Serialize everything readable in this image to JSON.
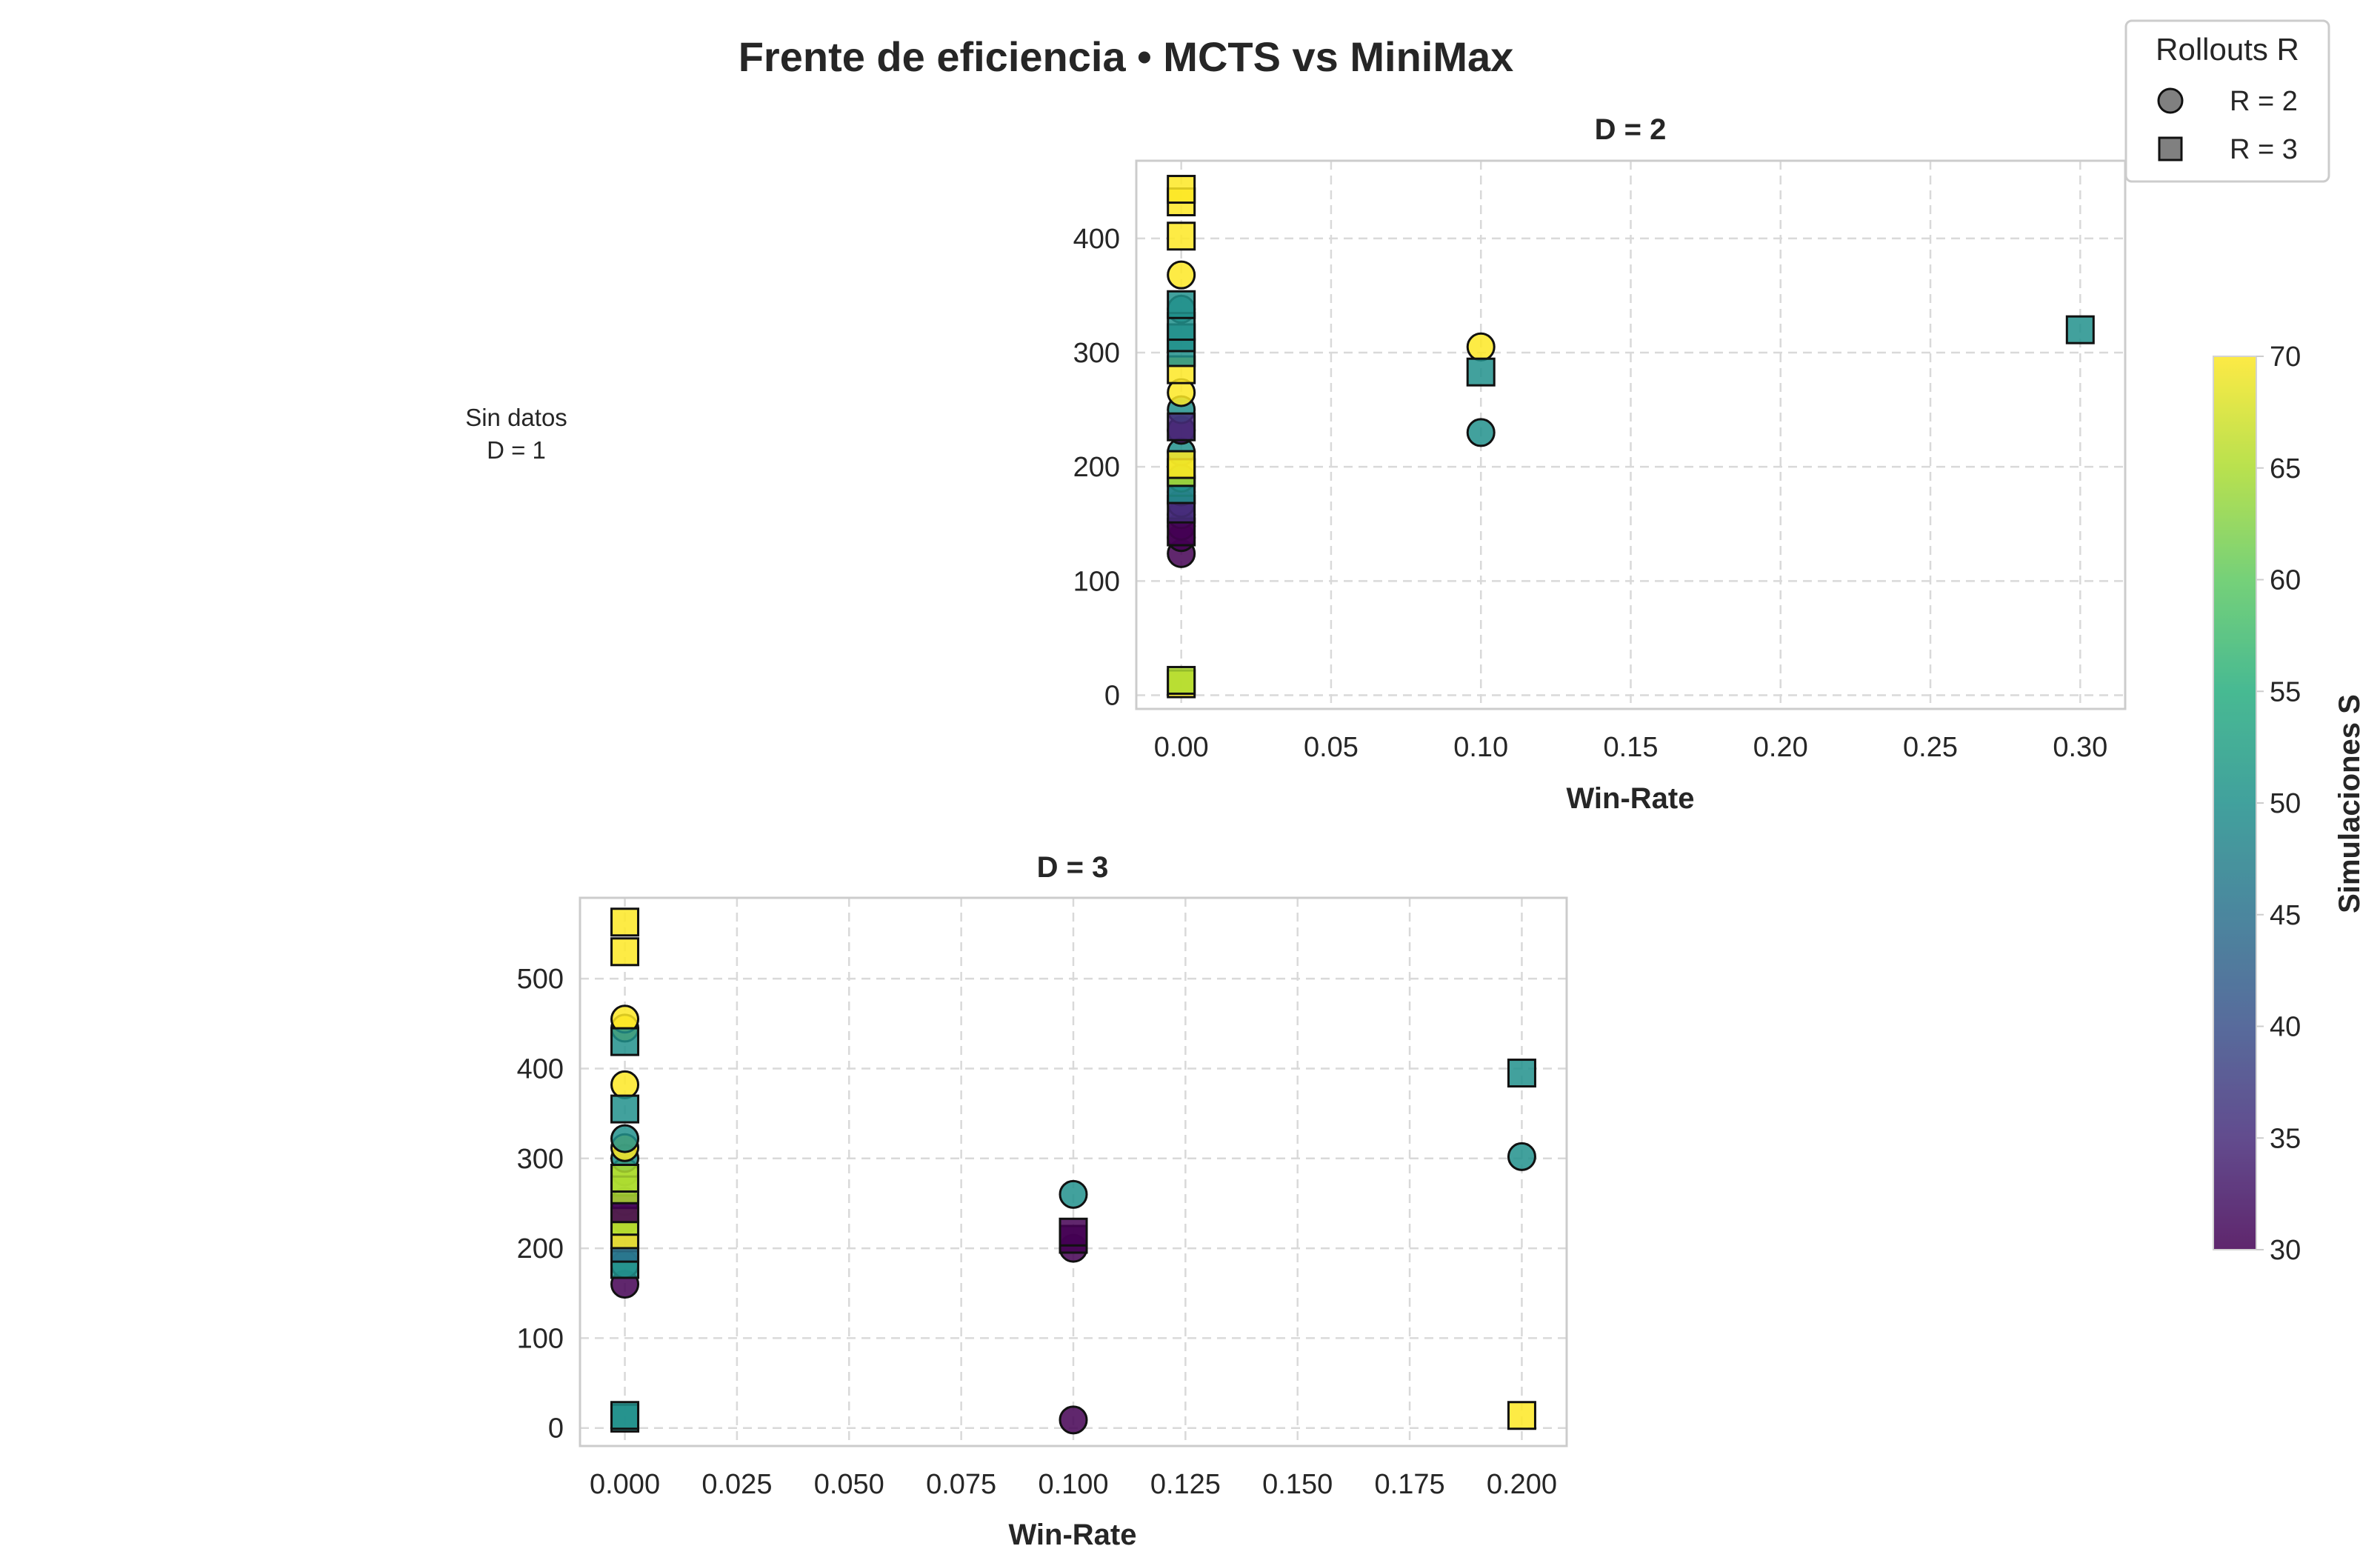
{
  "chart_data": {
    "type": "scatter",
    "title": "Frente de eficiencia • MCTS vs MiniMax",
    "legend": {
      "title": "Rollouts R",
      "placement": "top-right",
      "entries": [
        {
          "label": "R = 2",
          "marker": "circle"
        },
        {
          "label": "R = 3",
          "marker": "square"
        }
      ]
    },
    "colorbar": {
      "label": "Simulaciones S",
      "range": [
        30,
        70
      ],
      "ticks": [
        "30",
        "35",
        "40",
        "45",
        "50",
        "55",
        "60",
        "65",
        "70"
      ],
      "colormap": "viridis"
    },
    "panels": [
      {
        "id": "D1",
        "empty": true,
        "empty_text": [
          "Sin datos",
          "D = 1"
        ]
      },
      {
        "id": "D2",
        "title": "D = 2",
        "xlabel": "Win-Rate",
        "ylabel": "",
        "xlim": [
          -0.015,
          0.315
        ],
        "ylim": [
          -12,
          468
        ],
        "xticks": [
          0,
          0.05,
          0.1,
          0.15,
          0.2,
          0.25,
          0.3
        ],
        "xtick_labels": [
          "0.00",
          "0.05",
          "0.10",
          "0.15",
          "0.20",
          "0.25",
          "0.30"
        ],
        "yticks": [
          0,
          100,
          200,
          300,
          400
        ],
        "ytick_labels": [
          "0",
          "100",
          "200",
          "300",
          "400"
        ],
        "grid": true,
        "points": [
          {
            "x": 0,
            "y": 124,
            "r": 2,
            "s": 30
          },
          {
            "x": 0,
            "y": 138,
            "r": 2,
            "s": 30
          },
          {
            "x": 0,
            "y": 148,
            "r": 2,
            "s": 30
          },
          {
            "x": 0,
            "y": 158,
            "r": 2,
            "s": 35
          },
          {
            "x": 0,
            "y": 168,
            "r": 2,
            "s": 35
          },
          {
            "x": 0,
            "y": 178,
            "r": 2,
            "s": 35
          },
          {
            "x": 0,
            "y": 190,
            "r": 2,
            "s": 50
          },
          {
            "x": 0,
            "y": 213,
            "r": 2,
            "s": 50
          },
          {
            "x": 0,
            "y": 232,
            "r": 2,
            "s": 30
          },
          {
            "x": 0,
            "y": 250,
            "r": 2,
            "s": 50
          },
          {
            "x": 0,
            "y": 265,
            "r": 2,
            "s": 70
          },
          {
            "x": 0,
            "y": 338,
            "r": 2,
            "s": 50
          },
          {
            "x": 0,
            "y": 368,
            "r": 2,
            "s": 70
          },
          {
            "x": 0.1,
            "y": 230,
            "r": 2,
            "s": 50
          },
          {
            "x": 0.1,
            "y": 305,
            "r": 2,
            "s": 70
          },
          {
            "x": 0,
            "y": 10,
            "r": 3,
            "s": 70
          },
          {
            "x": 0,
            "y": 13,
            "r": 3,
            "s": 65
          },
          {
            "x": 0,
            "y": 143,
            "r": 3,
            "s": 30
          },
          {
            "x": 0,
            "y": 163,
            "r": 3,
            "s": 35
          },
          {
            "x": 0,
            "y": 180,
            "r": 3,
            "s": 50
          },
          {
            "x": 0,
            "y": 195,
            "r": 3,
            "s": 65
          },
          {
            "x": 0,
            "y": 202,
            "r": 3,
            "s": 70
          },
          {
            "x": 0,
            "y": 235,
            "r": 3,
            "s": 35
          },
          {
            "x": 0,
            "y": 285,
            "r": 3,
            "s": 70
          },
          {
            "x": 0,
            "y": 300,
            "r": 3,
            "s": 50
          },
          {
            "x": 0,
            "y": 313,
            "r": 3,
            "s": 50
          },
          {
            "x": 0,
            "y": 323,
            "r": 3,
            "s": 50
          },
          {
            "x": 0,
            "y": 342,
            "r": 3,
            "s": 50
          },
          {
            "x": 0,
            "y": 402,
            "r": 3,
            "s": 70
          },
          {
            "x": 0,
            "y": 432,
            "r": 3,
            "s": 70
          },
          {
            "x": 0,
            "y": 443,
            "r": 3,
            "s": 70
          },
          {
            "x": 0.1,
            "y": 283,
            "r": 3,
            "s": 50
          },
          {
            "x": 0.3,
            "y": 320,
            "r": 3,
            "s": 50
          }
        ]
      },
      {
        "id": "D3",
        "title": "D = 3",
        "xlabel": "Win-Rate",
        "ylabel": "",
        "xlim": [
          -0.01,
          0.21
        ],
        "ylim": [
          -20,
          590
        ],
        "xticks": [
          0,
          0.025,
          0.05,
          0.075,
          0.1,
          0.125,
          0.15,
          0.175,
          0.2
        ],
        "xtick_labels": [
          "0.000",
          "0.025",
          "0.050",
          "0.075",
          "0.100",
          "0.125",
          "0.150",
          "0.175",
          "0.200"
        ],
        "yticks": [
          0,
          100,
          200,
          300,
          400,
          500
        ],
        "ytick_labels": [
          "0",
          "100",
          "200",
          "300",
          "400",
          "500"
        ],
        "grid": true,
        "points": [
          {
            "x": 0,
            "y": 160,
            "r": 2,
            "s": 30
          },
          {
            "x": 0,
            "y": 182,
            "r": 2,
            "s": 50
          },
          {
            "x": 0,
            "y": 232,
            "r": 2,
            "s": 30
          },
          {
            "x": 0,
            "y": 252,
            "r": 2,
            "s": 35
          },
          {
            "x": 0,
            "y": 285,
            "r": 2,
            "s": 65
          },
          {
            "x": 0,
            "y": 300,
            "r": 2,
            "s": 50
          },
          {
            "x": 0,
            "y": 312,
            "r": 2,
            "s": 70
          },
          {
            "x": 0,
            "y": 322,
            "r": 2,
            "s": 50
          },
          {
            "x": 0,
            "y": 382,
            "r": 2,
            "s": 70
          },
          {
            "x": 0,
            "y": 445,
            "r": 2,
            "s": 70
          },
          {
            "x": 0,
            "y": 455,
            "r": 2,
            "s": 70
          },
          {
            "x": 0.1,
            "y": 9,
            "r": 2,
            "s": 30
          },
          {
            "x": 0.1,
            "y": 200,
            "r": 2,
            "s": 30
          },
          {
            "x": 0.1,
            "y": 260,
            "r": 2,
            "s": 50
          },
          {
            "x": 0.2,
            "y": 302,
            "r": 2,
            "s": 50
          },
          {
            "x": 0,
            "y": 11,
            "r": 3,
            "s": 50
          },
          {
            "x": 0,
            "y": 14,
            "r": 3,
            "s": 50
          },
          {
            "x": 0,
            "y": 182,
            "r": 3,
            "s": 50
          },
          {
            "x": 0,
            "y": 200,
            "r": 3,
            "s": 45
          },
          {
            "x": 0,
            "y": 215,
            "r": 3,
            "s": 70
          },
          {
            "x": 0,
            "y": 230,
            "r": 3,
            "s": 65
          },
          {
            "x": 0,
            "y": 244,
            "r": 3,
            "s": 30
          },
          {
            "x": 0,
            "y": 265,
            "r": 3,
            "s": 65
          },
          {
            "x": 0,
            "y": 278,
            "r": 3,
            "s": 65
          },
          {
            "x": 0,
            "y": 355,
            "r": 3,
            "s": 50
          },
          {
            "x": 0,
            "y": 430,
            "r": 3,
            "s": 50
          },
          {
            "x": 0,
            "y": 530,
            "r": 3,
            "s": 70
          },
          {
            "x": 0,
            "y": 563,
            "r": 3,
            "s": 70
          },
          {
            "x": 0.1,
            "y": 210,
            "r": 3,
            "s": 30
          },
          {
            "x": 0.1,
            "y": 218,
            "r": 3,
            "s": 30
          },
          {
            "x": 0.2,
            "y": 14,
            "r": 3,
            "s": 70
          },
          {
            "x": 0.2,
            "y": 395,
            "r": 3,
            "s": 50
          }
        ]
      }
    ]
  }
}
